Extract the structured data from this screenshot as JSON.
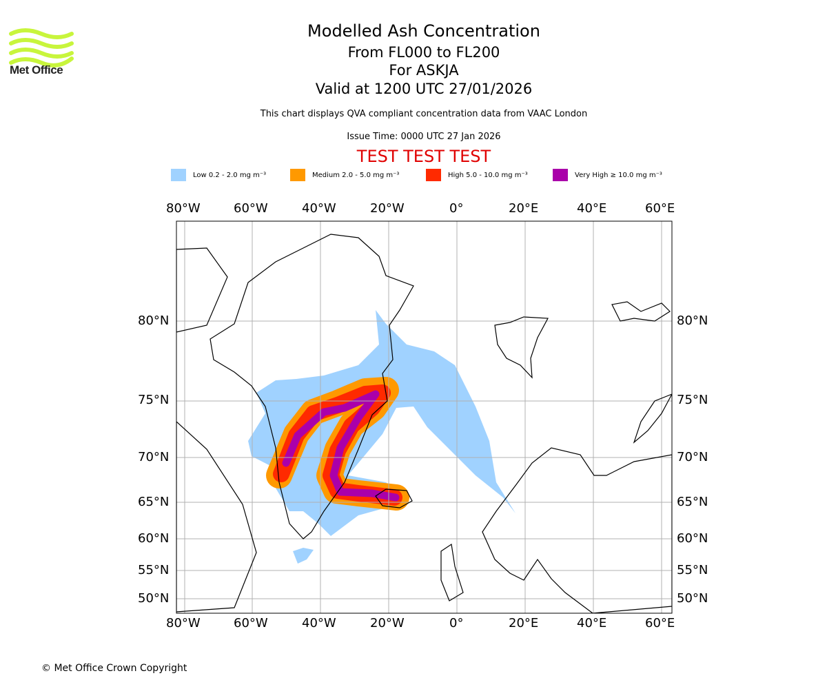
{
  "logo": {
    "text": "Met Office"
  },
  "header": {
    "title": "Modelled Ash Concentration",
    "levels": "From FL000 to FL200",
    "volcano": "For ASKJA",
    "valid": "Valid at 1200 UTC 27/01/2026",
    "note": "This chart displays QVA compliant concentration data from VAAC London",
    "issue": "Issue Time: 0000 UTC 27 Jan 2026",
    "test": "TEST TEST TEST"
  },
  "legend": [
    {
      "label": "Low 0.2 - 2.0 mg m⁻³",
      "color": "#a0d2ff"
    },
    {
      "label": "Medium 2.0 - 5.0 mg m⁻³",
      "color": "#ff9900"
    },
    {
      "label": "High 5.0 - 10.0 mg m⁻³",
      "color": "#ff2a00"
    },
    {
      "label": "Very High ≥ 10.0 mg m⁻³",
      "color": "#aa00aa"
    }
  ],
  "chart_data": {
    "type": "map",
    "lon_ticks": [
      "80°W",
      "60°W",
      "40°W",
      "20°W",
      "0°",
      "20°E",
      "40°E",
      "60°E"
    ],
    "lat_ticks": [
      "80°N",
      "75°N",
      "70°N",
      "65°N",
      "60°N",
      "55°N",
      "50°N"
    ],
    "grid": true
  },
  "footer": {
    "copyright": "© Met Office Crown Copyright"
  }
}
